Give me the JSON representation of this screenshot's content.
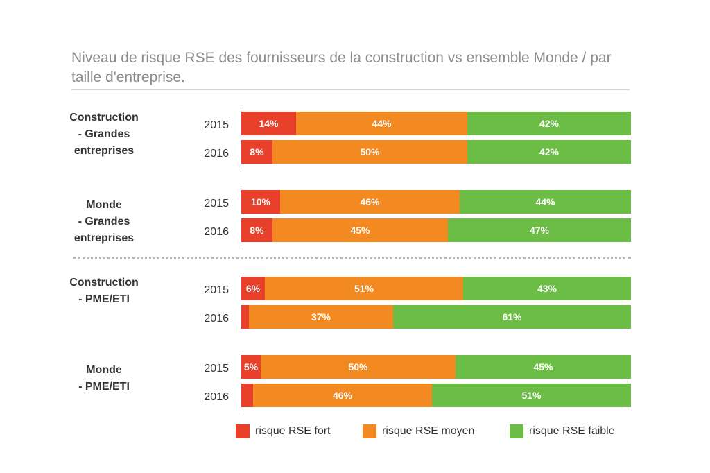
{
  "colors": {
    "fort": "#e8402a",
    "moyen": "#f28a21",
    "faible": "#6cbd45"
  },
  "chart_data": {
    "type": "bar",
    "orientation": "horizontal",
    "stacked": true,
    "title": "Niveau de risque RSE des fournisseurs de la construction vs ensemble Monde / par taille d'entreprise.",
    "xlim": [
      0,
      100
    ],
    "unit": "%",
    "legend": {
      "placement": "bottom",
      "entries": [
        "risque RSE fort",
        "risque RSE moyen",
        "risque RSE faible"
      ]
    },
    "groups": [
      {
        "label": "Construction - Grandes entreprises",
        "rows": [
          {
            "year": "2015",
            "values": [
              14,
              44,
              42
            ],
            "labels": [
              "14%",
              "44%",
              "42%"
            ]
          },
          {
            "year": "2016",
            "values": [
              8,
              50,
              42
            ],
            "labels": [
              "8%",
              "50%",
              "42%"
            ]
          }
        ]
      },
      {
        "label": "Monde - Grandes entreprises",
        "rows": [
          {
            "year": "2015",
            "values": [
              10,
              46,
              44
            ],
            "labels": [
              "10%",
              "46%",
              "44%"
            ]
          },
          {
            "year": "2016",
            "values": [
              8,
              45,
              47
            ],
            "labels": [
              "8%",
              "45%",
              "47%"
            ]
          }
        ]
      },
      {
        "label": "Construction - PME/ETI",
        "rows": [
          {
            "year": "2015",
            "values": [
              6,
              51,
              43
            ],
            "labels": [
              "6%",
              "51%",
              "43%"
            ]
          },
          {
            "year": "2016",
            "values": [
              2,
              37,
              61
            ],
            "labels": [
              "2%",
              "37%",
              "61%"
            ]
          }
        ]
      },
      {
        "label": "Monde - PME/ETI",
        "rows": [
          {
            "year": "2015",
            "values": [
              5,
              50,
              45
            ],
            "labels": [
              "5%",
              "50%",
              "45%"
            ]
          },
          {
            "year": "2016",
            "values": [
              3,
              46,
              51
            ],
            "labels": [
              "3%",
              "46%",
              "51%"
            ]
          }
        ]
      }
    ]
  }
}
